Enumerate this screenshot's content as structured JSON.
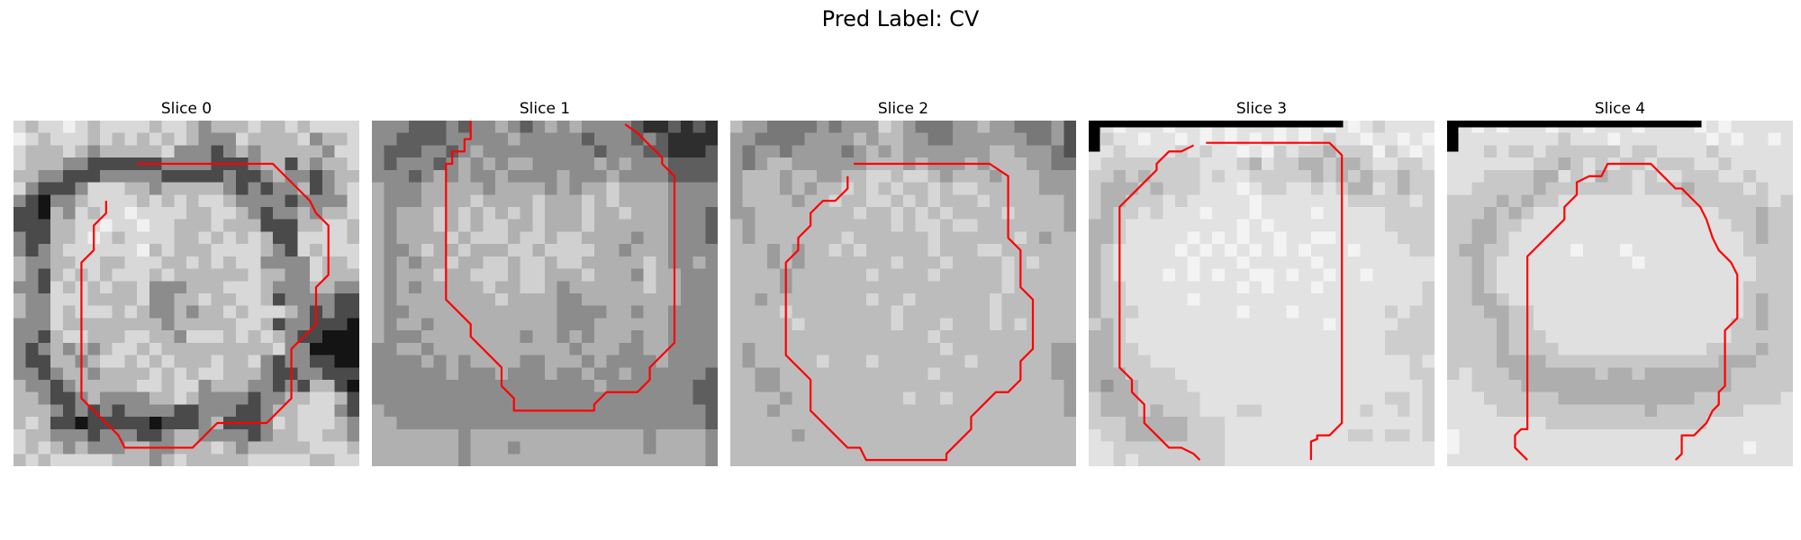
{
  "figure": {
    "title": "Pred Label: CV"
  },
  "panels": [
    {
      "title": "Slice 0",
      "palette": [
        "#f0f0f0",
        "#d8d8d8",
        "#b9b9b9",
        "#8c8c8c",
        "#4a4a4a",
        "#141414"
      ],
      "grid": [
        "1211012111121123222122121111",
        "0121112121212123331222213221",
        "1222123222221333432322222311",
        "1222334444443333444322423221",
        "2233444333334444434432334322",
        "1344431112232222234343324321",
        "3453321111212121123333433331",
        "4452312110111122112343323221",
        "4442211011011222122244422112",
        "3442210121111221212124411112",
        "3432111111021222111123412111",
        "2332211221112212121133331221",
        "2342121211121222222122331222",
        "3341212122133322211123332233",
        "2331112222133221221124333344",
        "2331211121233232212111234344",
        "3331222222223222221124334445",
        "3342112221122311121212344555",
        "3432323211212222222221335555",
        "3442232112121222122134334455",
        "3343223222212121122234433444",
        "2334322222112113222334342245",
        "2234432333322123333433221124",
        "2223434343333443334432211134",
        "2124454444454443244431211123",
        "1223334333443223333432211223",
        "1212323332233222123222221112",
        "2121111122232122222111112211"
      ],
      "markers": [],
      "contours": [
        [
          [
            10,
            3.5
          ],
          [
            21,
            3.5
          ],
          [
            24,
            6.5
          ],
          [
            24.5,
            7.5
          ],
          [
            25.5,
            8.5
          ],
          [
            25.5,
            12.5
          ],
          [
            24.5,
            13.5
          ],
          [
            24.5,
            16.5
          ],
          [
            22.5,
            18.5
          ],
          [
            22.5,
            22.5
          ],
          [
            20.5,
            24.5
          ],
          [
            16.5,
            24.5
          ],
          [
            14.5,
            26.5
          ],
          [
            9,
            26.5
          ],
          [
            8.5,
            25.5
          ],
          [
            6.5,
            23.5
          ],
          [
            5.5,
            22.5
          ],
          [
            5.5,
            20.5
          ],
          [
            5.5,
            11.5
          ],
          [
            6.5,
            10.5
          ],
          [
            6.5,
            8.5
          ],
          [
            7.5,
            7.5
          ],
          [
            7.5,
            6.5
          ]
        ]
      ]
    },
    {
      "title": "Slice 1",
      "palette": [
        "#ececec",
        "#d0d0d0",
        "#b0b0b0",
        "#8c8c8c",
        "#5e5e5e",
        "#2e2e2e"
      ],
      "grid": [
        "3334443433234323233334554545",
        "3344443333323333343334345555",
        "3444334323333333334333445554",
        "3433343232322333332323334444",
        "3334323233233332333233334444",
        "2333222223222232322122223333",
        "2333222212222122212122223333",
        "2322212121212122212212223334",
        "2322212121122122212222223334",
        "2322221211121121122223223334",
        "2332122122211211112232223333",
        "2323221221121121122222123323",
        "2322212211121122212223122333",
        "2323222221221123222222122333",
        "2322222222122223322222222333",
        "2332222222222223333223223333",
        "2322322222222223332222223333",
        "2333222222223223232223223333",
        "3322322222222222322233223333",
        "3333232322223322232333323333",
        "3333332333233323323323333334",
        "3333333333333333332333333344",
        "3333333333333333333333333344",
        "2333333333333333333333333334",
        "2233333333333333333333333334",
        "2222222322222222222222322223",
        "2222222322232222222222322223",
        "2222222322222222222222222223"
      ],
      "markers": [],
      "contours": [
        [
          [
            8,
            0
          ],
          [
            8,
            1.5
          ],
          [
            7.5,
            1.5
          ],
          [
            7.5,
            2.5
          ],
          [
            6.5,
            2.5
          ],
          [
            6.5,
            3.5
          ],
          [
            6,
            3.5
          ],
          [
            6,
            14.5
          ],
          [
            6.5,
            15
          ],
          [
            7.5,
            16
          ],
          [
            8,
            16.5
          ],
          [
            8,
            17.5
          ],
          [
            9.5,
            19
          ],
          [
            10.5,
            20
          ],
          [
            10.5,
            21.5
          ],
          [
            11.5,
            22.5
          ],
          [
            11.5,
            23.5
          ],
          [
            18,
            23.5
          ],
          [
            18,
            23
          ],
          [
            19,
            22
          ],
          [
            21.5,
            22
          ],
          [
            22.5,
            21
          ],
          [
            22.5,
            20
          ],
          [
            23.5,
            19
          ],
          [
            24.5,
            18
          ],
          [
            24.5,
            15.5
          ],
          [
            24.5,
            4.5
          ],
          [
            23.5,
            3.5
          ],
          [
            23.5,
            3
          ],
          [
            22.5,
            2
          ],
          [
            21.5,
            1
          ],
          [
            20.5,
            0.3
          ]
        ]
      ]
    },
    {
      "title": "Slice 2",
      "palette": [
        "#f0f0f0",
        "#d6d6d6",
        "#bcbcbc",
        "#9c9c9c",
        "#787878",
        "#505050"
      ],
      "grid": [
        "2334444343331234443323344435",
        "3344443333232233443333334435",
        "3433433334323233333332233345",
        "3432233333322232333232223344",
        "3222322332211211232223222333",
        "3222323221212122121122222333",
        "3222232212211212122212222223",
        "3322222222122121212222122223",
        "2322222222222121121122222223",
        "2322222221222222122222212322",
        "2223232212122222122211222222",
        "2223232222222122212222121222",
        "2222322222212222122222122222",
        "2222322222222222222222122222",
        "2232222222212212222221222222",
        "2222122222222122222221222222",
        "2222212222222122212221212222",
        "2222222222222222122222222222",
        "2322222222222222212222222233",
        "2322222122212222222122222233",
        "2233222222222222122222222233",
        "2233222222222222222222222223",
        "2222322222222212212222222223",
        "2223222222222222222222222223",
        "2222222222222222222222222222",
        "2222232222222222222222222222",
        "2222222222222222222222222222",
        "2222222222222222222222222222"
      ],
      "markers": [],
      "contours": [
        [
          [
            10,
            3.5
          ],
          [
            21,
            3.5
          ],
          [
            22.5,
            4.5
          ],
          [
            22.5,
            9.5
          ],
          [
            23.5,
            10.5
          ],
          [
            23.5,
            13.5
          ],
          [
            24.5,
            14.5
          ],
          [
            24.5,
            18.5
          ],
          [
            23.5,
            19.5
          ],
          [
            23.5,
            21
          ],
          [
            22.5,
            22
          ],
          [
            21.5,
            22
          ],
          [
            20.5,
            23
          ],
          [
            19.5,
            24
          ],
          [
            19.5,
            25
          ],
          [
            18.5,
            26
          ],
          [
            17.5,
            27
          ],
          [
            17.5,
            27.5
          ],
          [
            11,
            27.5
          ],
          [
            10.5,
            26.5
          ],
          [
            9.5,
            26.5
          ],
          [
            8.5,
            25.5
          ],
          [
            6.5,
            23.5
          ],
          [
            6.5,
            22.5
          ],
          [
            6.5,
            21
          ],
          [
            5.5,
            20
          ],
          [
            4.5,
            19
          ],
          [
            4.5,
            11.5
          ],
          [
            5.5,
            10.5
          ],
          [
            5.5,
            9.5
          ],
          [
            6.5,
            8.5
          ],
          [
            6.5,
            7.5
          ],
          [
            7.5,
            6.5
          ],
          [
            8.5,
            6.5
          ],
          [
            9.5,
            5.5
          ],
          [
            9.5,
            4.5
          ]
        ]
      ]
    },
    {
      "title": "Slice 3",
      "palette": [
        "#f3f3f3",
        "#e2e2e2",
        "#cdcdcd",
        "#b2b2b2",
        "#969696",
        "#7a7a7a"
      ],
      "grid": [
        "2101110110101110101010121111",
        "1211011010101010101211011010",
        "1121111212110102122322202101",
        "1222222221112312233233211221",
        "2232322221211222223232322322",
        "2333232221110122112123312322",
        "2332221211111011111112222212",
        "2322121110111011110111112222",
        "3321111111110101111111112222",
        "3321111101010110110011111222",
        "3211111010101010101110111122",
        "3211111101110111110111111111",
        "3211110101011001011011011111",
        "3221111111110101110111111112",
        "3221111101111111111111111112",
        "3222111111110111011111112122",
        "2321111111111111111011111222",
        "3321111111111111111111112222",
        "3322111111111111111111112222",
        "3322211111111111111111111121",
        "3332222111111111111111111122",
        "3433222211111111111111111112",
        "2333222221111111111111112212",
        "2333232221112211111111211212",
        "2223333322211111111111111112",
        "1223333322211111111112212212",
        "1122222222211111111111111111",
        "1121222222211111111111111111"
      ],
      "markers": [
        [
          [
            0,
            0
          ],
          [
            20.6,
            0
          ],
          [
            20.6,
            0.55
          ],
          [
            0.9,
            0.55
          ],
          [
            0.9,
            2.5
          ],
          [
            0,
            2.5
          ]
        ]
      ],
      "contours": [
        [
          [
            9.5,
            1.8
          ],
          [
            19.5,
            1.8
          ],
          [
            20.5,
            2.8
          ],
          [
            20.5,
            24.5
          ],
          [
            19.5,
            25.5
          ],
          [
            18.5,
            25.5
          ],
          [
            18.5,
            25.8
          ],
          [
            18,
            26
          ],
          [
            18,
            27.5
          ]
        ],
        [
          [
            9,
            27.5
          ],
          [
            8.5,
            27
          ],
          [
            7.5,
            26.5
          ],
          [
            6.5,
            26.5
          ],
          [
            5.5,
            25.5
          ],
          [
            4.5,
            24.5
          ],
          [
            4.5,
            23
          ],
          [
            3.5,
            22
          ],
          [
            3.5,
            21
          ],
          [
            2.5,
            20
          ],
          [
            2.5,
            7
          ],
          [
            3.5,
            6
          ],
          [
            4.5,
            5
          ],
          [
            5.5,
            4
          ],
          [
            5.5,
            3.5
          ],
          [
            6.5,
            2.5
          ],
          [
            7.5,
            2.5
          ],
          [
            8.5,
            2
          ]
        ]
      ]
    },
    {
      "title": "Slice 4",
      "palette": [
        "#f3f3f3",
        "#e0e0e0",
        "#c8c8c8",
        "#aeaeae",
        "#929292",
        "#767676"
      ],
      "grid": [
        "0101011101101110111101011111",
        "1111111112111011111110101101",
        "1112122122222212211112111111",
        "1111111223212122122211211111",
        "1112222331213221211222112111",
        "1122222322222221222322221211",
        "2222323221111111111222222212",
        "2223232111111111111111222322",
        "2233221111111111111111122322",
        "2233211111111111111111112322",
        "2332211111011101111111112222",
        "2232111111111110111111111222",
        "2232111111111111111111111222",
        "2232111111111111111111112222",
        "2233211111111111111111112322",
        "2223322111111111111111112322",
        "2222322111111111111111122322",
        "2222322211111111111111122222",
        "2222322221111111111112222322",
        "2222333322222222222222333222",
        "2122233333332332333333322222",
        "1122223333333333333333322222",
        "1112222223333333333322222221",
        "1111222222222222322222221111",
        "1111111122222222222221111111",
        "0111111111111111111111111111",
        "0111111111111111111111110111",
        "1111111111111111111111111111"
      ],
      "markers": [
        [
          [
            0,
            0
          ],
          [
            20.6,
            0
          ],
          [
            20.6,
            0.55
          ],
          [
            0.9,
            0.55
          ],
          [
            0.9,
            2.5
          ],
          [
            0,
            2.5
          ]
        ]
      ],
      "contours": [
        [
          [
            6.5,
            27.5
          ],
          [
            6,
            27
          ],
          [
            5.5,
            26.5
          ],
          [
            5.5,
            25.5
          ],
          [
            6,
            25
          ],
          [
            6.5,
            25
          ],
          [
            6.5,
            11
          ],
          [
            7.5,
            10
          ],
          [
            8.5,
            9
          ],
          [
            9.5,
            8
          ],
          [
            9.5,
            7
          ],
          [
            10.5,
            6
          ],
          [
            10.5,
            5
          ],
          [
            11.5,
            4.5
          ],
          [
            12.5,
            4.5
          ],
          [
            13,
            3.5
          ],
          [
            16.5,
            3.5
          ],
          [
            17.5,
            4.5
          ],
          [
            18,
            5
          ],
          [
            18.5,
            5.5
          ],
          [
            19,
            5.5
          ],
          [
            19.5,
            6
          ],
          [
            20.5,
            7
          ],
          [
            21,
            8
          ],
          [
            21.5,
            9.5
          ],
          [
            22,
            10.5
          ],
          [
            23,
            11.5
          ],
          [
            23.5,
            12.5
          ],
          [
            23.5,
            16
          ],
          [
            23,
            16.5
          ],
          [
            22.5,
            17
          ],
          [
            22.5,
            21.5
          ],
          [
            22,
            22
          ],
          [
            22,
            23
          ],
          [
            21.5,
            23.5
          ],
          [
            21,
            24.5
          ],
          [
            20,
            25.5
          ],
          [
            19,
            25.5
          ],
          [
            19,
            27
          ],
          [
            18.5,
            27.5
          ]
        ]
      ]
    }
  ]
}
